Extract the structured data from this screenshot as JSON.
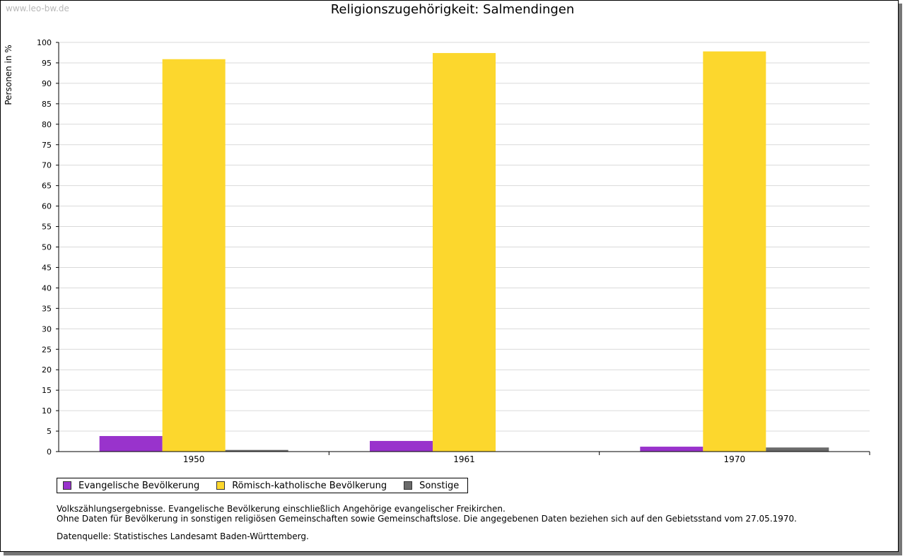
{
  "watermark": "www.leo-bw.de",
  "chart_data": {
    "type": "bar",
    "title": "Religionszugehörigkeit: Salmendingen",
    "xlabel": "",
    "ylabel": "Personen in %",
    "ylim": [
      0,
      100
    ],
    "yticks": [
      0,
      5,
      10,
      15,
      20,
      25,
      30,
      35,
      40,
      45,
      50,
      55,
      60,
      65,
      70,
      75,
      80,
      85,
      90,
      95,
      100
    ],
    "categories": [
      "1950",
      "1961",
      "1970"
    ],
    "grid": true,
    "legend_position": "bottom-left",
    "series": [
      {
        "name": "Evangelische Bevölkerung",
        "color": "#9933cc",
        "values": [
          3.8,
          2.6,
          1.2
        ]
      },
      {
        "name": "Römisch-katholische Bevölkerung",
        "color": "#fcd72d",
        "values": [
          95.9,
          97.4,
          97.8
        ]
      },
      {
        "name": "Sonstige",
        "color": "#6a6a6a",
        "values": [
          0.4,
          0.0,
          1.0
        ]
      }
    ]
  },
  "notes": {
    "line1": "Volkszählungsergebnisse. Evangelische Bevölkerung einschließlich Angehörige evangelischer Freikirchen.",
    "line2": "Ohne Daten für Bevölkerung in sonstigen religiösen Gemeinschaften sowie Gemeinschaftslose. Die angegebenen Daten beziehen sich auf den Gebietsstand vom 27.05.1970.",
    "source": "Datenquelle: Statistisches Landesamt Baden-Württemberg."
  }
}
